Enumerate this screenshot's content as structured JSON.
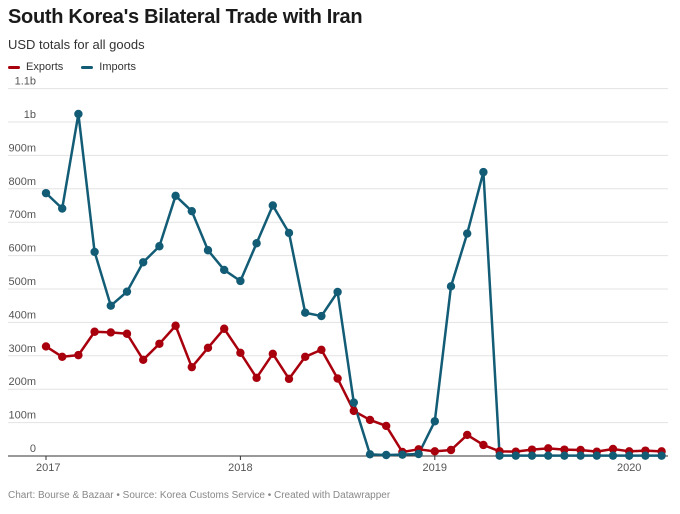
{
  "header": {
    "title": "South Korea's Bilateral Trade with Iran",
    "subtitle": "USD totals for all goods"
  },
  "footer": {
    "text": "Chart: Bourse & Bazaar • Source: Korea Customs Service • Created with Datawrapper"
  },
  "chart_data": {
    "type": "line",
    "title": "South Korea's Bilateral Trade with Iran",
    "subtitle": "USD totals for all goods",
    "x_start": "2017-01",
    "x_ticks": [
      "2017",
      "2018",
      "2019",
      "2020"
    ],
    "y_ticks": [
      "0",
      "100m",
      "200m",
      "300m",
      "400m",
      "500m",
      "600m",
      "700m",
      "800m",
      "900m",
      "1b",
      "1.1b"
    ],
    "ylim": [
      0,
      1100
    ],
    "y_unit": "millions USD",
    "grid": true,
    "legend_position": "top-left",
    "series": [
      {
        "name": "Exports",
        "color": "#a8000d",
        "values": [
          328,
          297,
          302,
          372,
          370,
          366,
          288,
          336,
          390,
          266,
          324,
          381,
          309,
          234,
          306,
          231,
          297,
          318,
          232,
          135,
          108,
          90,
          12,
          20,
          14,
          18,
          63,
          33,
          14,
          13,
          19,
          23,
          19,
          18,
          13,
          21,
          14,
          16,
          14
        ]
      },
      {
        "name": "Imports",
        "color": "#135c76",
        "values": [
          787,
          741,
          1024,
          611,
          450,
          492,
          580,
          628,
          779,
          733,
          616,
          557,
          524,
          637,
          750,
          668,
          429,
          419,
          491,
          160,
          5,
          3,
          4,
          6,
          104,
          508,
          666,
          850,
          1,
          1,
          1,
          1,
          1,
          1,
          1,
          1,
          1,
          1,
          1
        ]
      }
    ]
  }
}
